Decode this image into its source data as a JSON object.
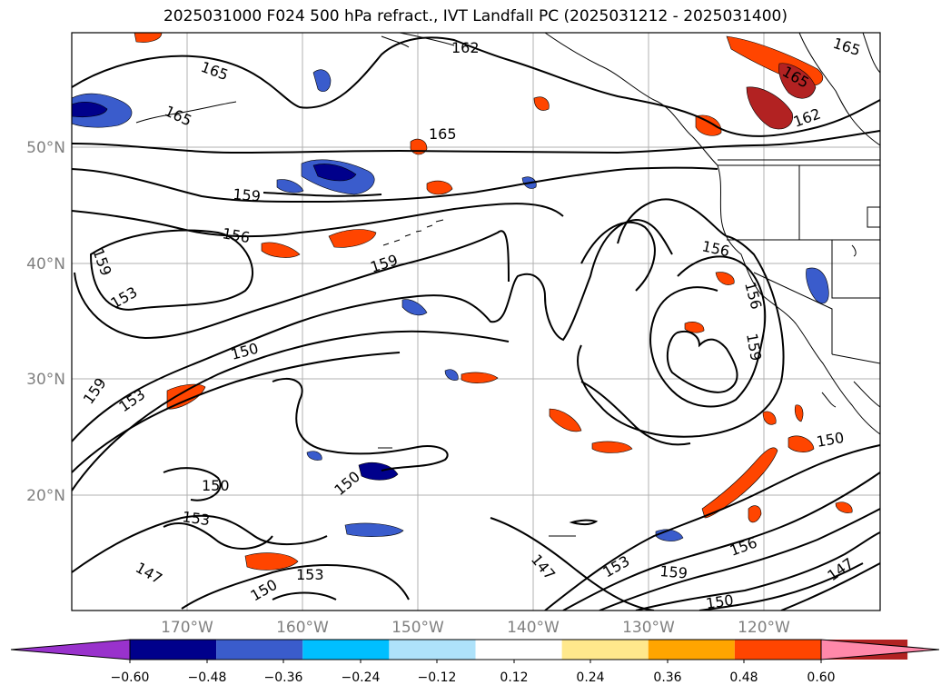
{
  "title": "2025031000 F024 500 hPa refract., IVT Landfall PC (2025031212 - 2025031400)",
  "lat_labels": [
    "50°N",
    "40°N",
    "30°N",
    "20°N"
  ],
  "lon_labels": [
    "170°W",
    "160°W",
    "150°W",
    "140°W",
    "130°W",
    "120°W"
  ],
  "colorbar": {
    "tick_labels": [
      "−0.60",
      "−0.48",
      "−0.36",
      "−0.24",
      "−0.12",
      "0.12",
      "0.24",
      "0.36",
      "0.48",
      "0.60"
    ],
    "colors": [
      "#9932cc",
      "#00008b",
      "#3a5ccc",
      "#00bfff",
      "#aee2fa",
      "#ffffff",
      "#ffe88c",
      "#ffa500",
      "#ff4500",
      "#b22222",
      "#ff88aa"
    ]
  },
  "contour_labels": [
    "165",
    "162",
    "165",
    "165",
    "165",
    "165",
    "162",
    "159",
    "159",
    "156",
    "156",
    "159",
    "153",
    "150",
    "153",
    "159",
    "156",
    "159",
    "150",
    "150",
    "153",
    "150",
    "147",
    "153",
    "150",
    "147",
    "153",
    "156",
    "159",
    "150",
    "147"
  ]
}
